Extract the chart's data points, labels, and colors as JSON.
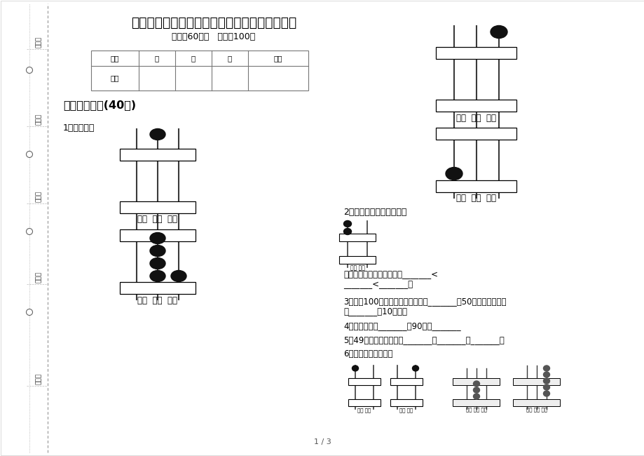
{
  "title": "苏教版一年级下学期竞赛练习题数学期末模拟试",
  "subtitle": "时间：60分钟   满分：100分",
  "bg_color": "#ffffff",
  "section1_title": "一、基础练习(40分)",
  "q1_title": "1．看图写数",
  "q2_title": "2．看图写一写，比一比。",
  "q3_text": "3．一张100元的人民币，可以换成_______张50元，或者还能换",
  "q3_text2": "成_______张10元的。",
  "q4_text": "4．七十六写作_______，90读作_______",
  "q5_text": "5．49后面连续三个数是_______、_______、_______。",
  "q6_text": "6．认一认，比一比。",
  "q2_line1": "把上面三个数从小到大排列_______<",
  "q2_line2": "_______<_______。",
  "table_headers": [
    "题号",
    "一",
    "二",
    "三",
    "总分"
  ],
  "left_labels": [
    "考号：",
    "考场：",
    "姓名：",
    "班级：",
    "学校："
  ],
  "page_num": "1 / 3"
}
